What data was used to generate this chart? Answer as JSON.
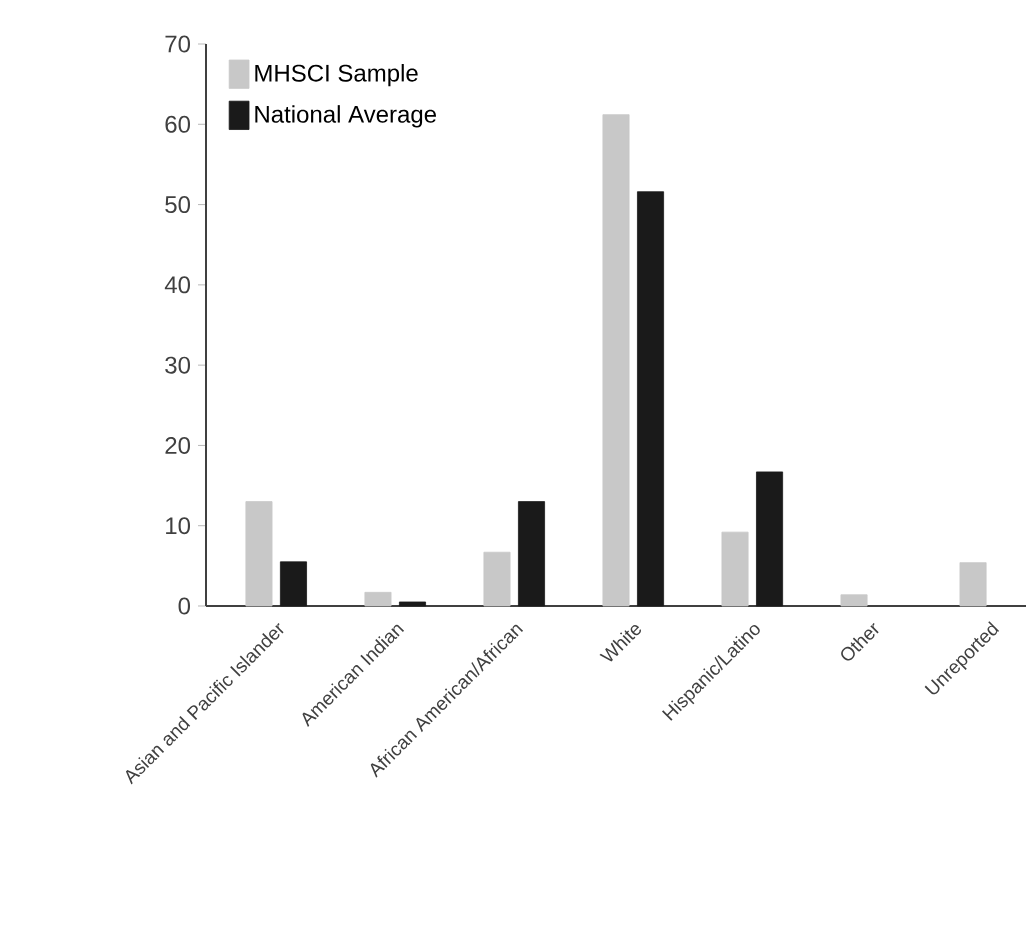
{
  "chart_data": {
    "type": "bar",
    "categories": [
      "Asian and Pacific Islander",
      "American Indian",
      "African American/African",
      "White",
      "Hispanic/Latino",
      "Other",
      "Unreported"
    ],
    "series": [
      {
        "name": "MHSCI Sample",
        "color": "#c8c8c8",
        "values": [
          13.0,
          1.7,
          6.7,
          61.2,
          9.2,
          1.4,
          5.4
        ]
      },
      {
        "name": "National Average",
        "color": "#1a1a1a",
        "values": [
          5.5,
          0.5,
          13.0,
          51.6,
          16.7,
          null,
          null
        ]
      }
    ],
    "ylim": [
      0,
      70
    ],
    "yticks": [
      0,
      10,
      20,
      30,
      40,
      50,
      60,
      70
    ],
    "grid": false,
    "legend": "top left"
  }
}
